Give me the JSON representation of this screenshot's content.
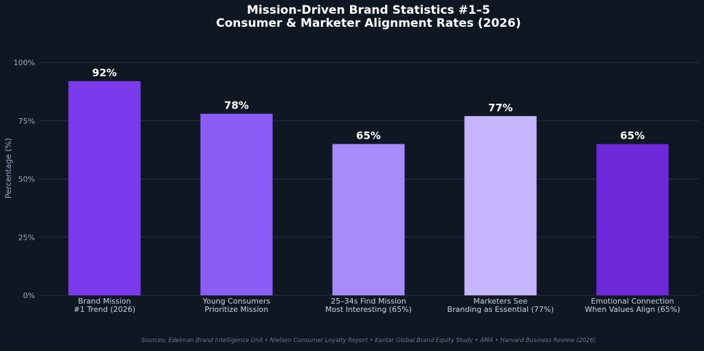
{
  "chart_data": {
    "type": "bar",
    "title_lines": [
      "Mission-Driven Brand Statistics #1–5",
      "Consumer & Marketer Alignment Rates (2026)"
    ],
    "ylabel": "Percentage (%)",
    "xlabel": "",
    "ylim": [
      0,
      100
    ],
    "yticks": [
      {
        "value": 0,
        "label": "0%"
      },
      {
        "value": 25,
        "label": "25%"
      },
      {
        "value": 50,
        "label": "50%"
      },
      {
        "value": 75,
        "label": "75%"
      },
      {
        "value": 100,
        "label": "100%"
      }
    ],
    "grid": true,
    "categories": [
      [
        "Brand Mission",
        "#1 Trend (2026)"
      ],
      [
        "Young Consumers",
        "Prioritize Mission"
      ],
      [
        "25–34s Find Mission",
        "Most Interesting (65%)"
      ],
      [
        "Marketers See",
        "Branding as Essential (77%)"
      ],
      [
        "Emotional Connection",
        "When Values Align (65%)"
      ]
    ],
    "values": [
      92,
      78,
      65,
      77,
      65
    ],
    "value_labels": [
      "92%",
      "78%",
      "65%",
      "77%",
      "65%"
    ],
    "bar_colors": [
      "#7c3aed",
      "#8b5cf6",
      "#a78bfa",
      "#c4b5fd",
      "#6d28d9"
    ],
    "source": "Sources: Edelman Brand Intelligence Unit • Nielsen Consumer Loyalty Report • Kantar Global Brand Equity Study • AMA • Harvard Business Review (2026)"
  },
  "colors": {
    "background": "#0f1723",
    "grid": "#1f3340"
  }
}
